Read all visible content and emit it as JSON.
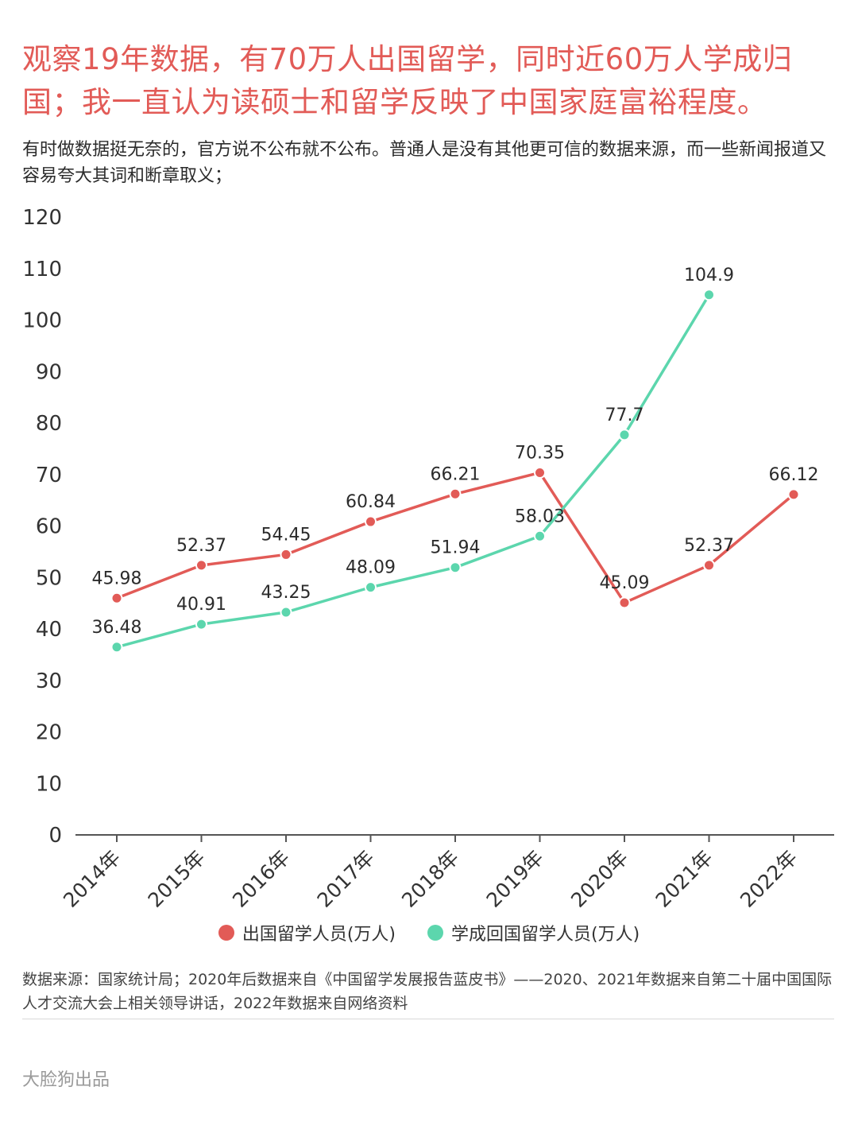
{
  "title": "观察19年数据，有70万人出国留学，同时近60万人学成归国；我一直认为读硕士和留学反映了中国家庭富裕程度。",
  "subtitle": "有时做数据挺无奈的，官方说不公布就不公布。普通人是没有其他更可信的数据来源，而一些新闻报道又容易夸大其词和断章取义；",
  "source": "数据来源：国家统计局；2020年后数据来自《中国留学发展报告蓝皮书》——2020、2021年数据来自第二十届中国国际人才交流大会上相关领导讲话，2022年数据来自网络资料",
  "brand": "大脸狗出品",
  "chart_data": {
    "type": "line",
    "categories": [
      "2014年",
      "2015年",
      "2016年",
      "2017年",
      "2018年",
      "2019年",
      "2020年",
      "2021年",
      "2022年"
    ],
    "ylim": [
      0,
      120
    ],
    "yticks": [
      0,
      10,
      20,
      30,
      40,
      50,
      60,
      70,
      80,
      90,
      100,
      110,
      120
    ],
    "grid": false,
    "legend_position": "bottom",
    "series": [
      {
        "name": "出国留学人员(万人)",
        "color": "#e25b57",
        "values": [
          45.98,
          52.37,
          54.45,
          60.84,
          66.21,
          70.35,
          45.09,
          52.37,
          66.12
        ],
        "labels": [
          "45.98",
          "52.37",
          "54.45",
          "60.84",
          "66.21",
          "70.35",
          "45.09",
          "52.37",
          "66.12"
        ]
      },
      {
        "name": "学成回国留学人员(万人)",
        "color": "#5cd6ad",
        "values": [
          36.48,
          40.91,
          43.25,
          48.09,
          51.94,
          58.03,
          77.7,
          104.9,
          null
        ],
        "labels": [
          "36.48",
          "40.91",
          "43.25",
          "48.09",
          "51.94",
          "58.03",
          "77.7",
          "104.9",
          null
        ]
      }
    ]
  }
}
